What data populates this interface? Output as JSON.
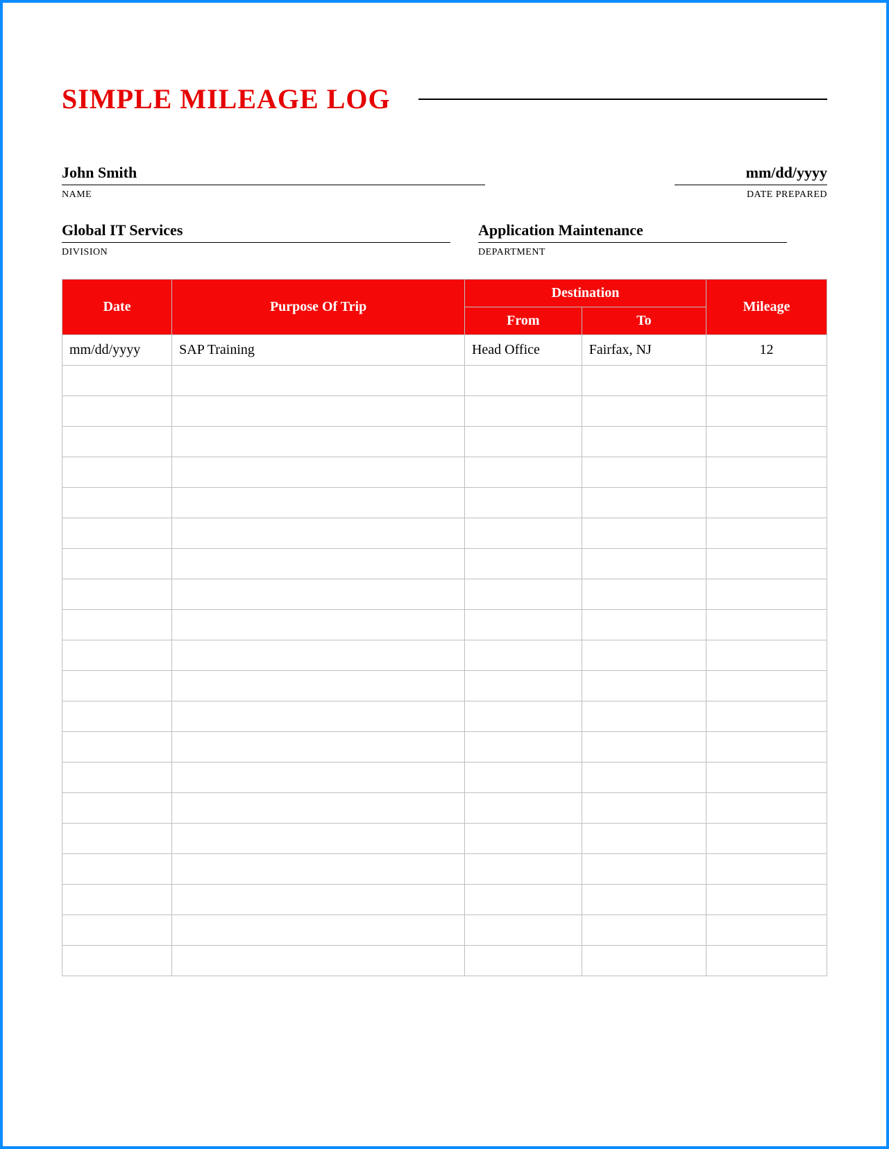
{
  "title": "SIMPLE MILEAGE LOG",
  "colors": {
    "accent": "#e60000",
    "header_bg": "#f40808",
    "header_text": "#ffffff",
    "border": "#bfbfbf",
    "frame": "#0a8cff",
    "text": "#000000"
  },
  "info": {
    "name": {
      "value": "John Smith",
      "label": "NAME"
    },
    "date_prepared": {
      "value": "mm/dd/yyyy",
      "label": "DATE PREPARED"
    },
    "division": {
      "value": "Global IT Services",
      "label": "DIVISION"
    },
    "department": {
      "value": "Application Maintenance",
      "label": "DEPARTMENT"
    }
  },
  "table": {
    "headers": {
      "date": "Date",
      "purpose": "Purpose Of Trip",
      "destination": "Destination",
      "from": "From",
      "to": "To",
      "mileage": "Mileage"
    },
    "rows": [
      {
        "date": "mm/dd/yyyy",
        "purpose": "SAP Training",
        "from": "Head Office",
        "to": "Fairfax, NJ",
        "mileage": "12"
      },
      {
        "date": "",
        "purpose": "",
        "from": "",
        "to": "",
        "mileage": ""
      },
      {
        "date": "",
        "purpose": "",
        "from": "",
        "to": "",
        "mileage": ""
      },
      {
        "date": "",
        "purpose": "",
        "from": "",
        "to": "",
        "mileage": ""
      },
      {
        "date": "",
        "purpose": "",
        "from": "",
        "to": "",
        "mileage": ""
      },
      {
        "date": "",
        "purpose": "",
        "from": "",
        "to": "",
        "mileage": ""
      },
      {
        "date": "",
        "purpose": "",
        "from": "",
        "to": "",
        "mileage": ""
      },
      {
        "date": "",
        "purpose": "",
        "from": "",
        "to": "",
        "mileage": ""
      },
      {
        "date": "",
        "purpose": "",
        "from": "",
        "to": "",
        "mileage": ""
      },
      {
        "date": "",
        "purpose": "",
        "from": "",
        "to": "",
        "mileage": ""
      },
      {
        "date": "",
        "purpose": "",
        "from": "",
        "to": "",
        "mileage": ""
      },
      {
        "date": "",
        "purpose": "",
        "from": "",
        "to": "",
        "mileage": ""
      },
      {
        "date": "",
        "purpose": "",
        "from": "",
        "to": "",
        "mileage": ""
      },
      {
        "date": "",
        "purpose": "",
        "from": "",
        "to": "",
        "mileage": ""
      },
      {
        "date": "",
        "purpose": "",
        "from": "",
        "to": "",
        "mileage": ""
      },
      {
        "date": "",
        "purpose": "",
        "from": "",
        "to": "",
        "mileage": ""
      },
      {
        "date": "",
        "purpose": "",
        "from": "",
        "to": "",
        "mileage": ""
      },
      {
        "date": "",
        "purpose": "",
        "from": "",
        "to": "",
        "mileage": ""
      },
      {
        "date": "",
        "purpose": "",
        "from": "",
        "to": "",
        "mileage": ""
      },
      {
        "date": "",
        "purpose": "",
        "from": "",
        "to": "",
        "mileage": ""
      },
      {
        "date": "",
        "purpose": "",
        "from": "",
        "to": "",
        "mileage": ""
      }
    ]
  }
}
